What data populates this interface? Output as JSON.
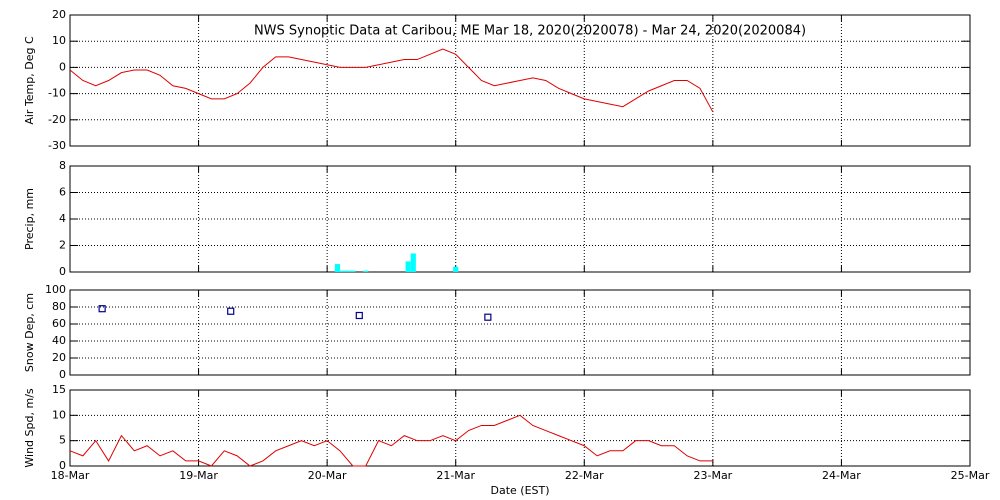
{
  "chart_data": [
    {
      "type": "line",
      "title": "NWS Synoptic Data at Caribou, ME   Mar 18, 2020(2020078) - Mar 24, 2020(2020084)",
      "ylabel": "Air Temp, Deg C",
      "color": "#e00000",
      "x": [
        0,
        0.1,
        0.2,
        0.3,
        0.4,
        0.5,
        0.6,
        0.7,
        0.8,
        0.9,
        1.0,
        1.1,
        1.2,
        1.3,
        1.4,
        1.5,
        1.6,
        1.7,
        1.8,
        1.9,
        2.0,
        2.1,
        2.2,
        2.3,
        2.4,
        2.5,
        2.6,
        2.7,
        2.8,
        2.9,
        3.0,
        3.1,
        3.2,
        3.3,
        3.4,
        3.5,
        3.6,
        3.7,
        3.8,
        3.9,
        4.0,
        4.1,
        4.2,
        4.3,
        4.4,
        4.5,
        4.6,
        4.7,
        4.8,
        4.9,
        5.0
      ],
      "values": [
        -1,
        -5,
        -7,
        -5,
        -2,
        -1,
        -1,
        -3,
        -7,
        -8,
        -10,
        -12,
        -12,
        -10,
        -6,
        0,
        4,
        4,
        3,
        2,
        1,
        0,
        0,
        0,
        1,
        2,
        3,
        3,
        5,
        7,
        5,
        0,
        -5,
        -7,
        -6,
        -5,
        -4,
        -5,
        -8,
        -10,
        -12,
        -13,
        -14,
        -15,
        -12,
        -9,
        -7,
        -5,
        -5,
        -8,
        -17
      ],
      "xlim": [
        0,
        7
      ],
      "xticks": [
        0,
        1,
        2,
        3,
        4,
        5,
        6,
        7
      ],
      "ylim": [
        -30,
        20
      ],
      "yticks": [
        -30,
        -20,
        -10,
        0,
        10,
        20
      ],
      "grid": true
    },
    {
      "type": "bar",
      "ylabel": "Precip, mm",
      "color": "#00ffff",
      "x": [
        2.08,
        2.12,
        2.16,
        2.2,
        2.3,
        2.63,
        2.67,
        3.0
      ],
      "values": [
        0.6,
        0.1,
        0.1,
        0.1,
        0.1,
        0.8,
        1.4,
        0.4
      ],
      "xlim": [
        0,
        7
      ],
      "xticks": [
        0,
        1,
        2,
        3,
        4,
        5,
        6,
        7
      ],
      "ylim": [
        0,
        8
      ],
      "yticks": [
        0,
        2,
        4,
        6,
        8
      ],
      "grid": true
    },
    {
      "type": "scatter",
      "ylabel": "Snow Dep, cm",
      "color": "#000090",
      "x": [
        0.25,
        1.25,
        2.25,
        3.25
      ],
      "values": [
        78,
        75,
        70,
        68
      ],
      "xlim": [
        0,
        7
      ],
      "xticks": [
        0,
        1,
        2,
        3,
        4,
        5,
        6,
        7
      ],
      "ylim": [
        0,
        100
      ],
      "yticks": [
        0,
        20,
        40,
        60,
        80,
        100
      ],
      "grid": true
    },
    {
      "type": "line",
      "ylabel": "Wind Spd, m/s",
      "xlabel": "Date (EST)",
      "color": "#e00000",
      "x": [
        0,
        0.1,
        0.2,
        0.3,
        0.4,
        0.5,
        0.6,
        0.7,
        0.8,
        0.9,
        1.0,
        1.1,
        1.2,
        1.3,
        1.4,
        1.5,
        1.6,
        1.7,
        1.8,
        1.9,
        2.0,
        2.1,
        2.2,
        2.3,
        2.4,
        2.5,
        2.6,
        2.7,
        2.8,
        2.9,
        3.0,
        3.1,
        3.2,
        3.3,
        3.4,
        3.5,
        3.6,
        3.7,
        3.8,
        3.9,
        4.0,
        4.1,
        4.2,
        4.3,
        4.4,
        4.5,
        4.6,
        4.7,
        4.8,
        4.9,
        5.0
      ],
      "values": [
        3,
        2,
        5,
        1,
        6,
        3,
        4,
        2,
        3,
        1,
        1,
        0,
        3,
        2,
        0,
        1,
        3,
        4,
        5,
        4,
        5,
        3,
        0,
        0,
        5,
        4,
        6,
        5,
        5,
        6,
        5,
        7,
        8,
        8,
        9,
        10,
        8,
        7,
        6,
        5,
        4,
        2,
        3,
        3,
        5,
        5,
        4,
        4,
        2,
        1,
        1
      ],
      "xlim": [
        0,
        7
      ],
      "xticks": [
        {
          "value": 0,
          "label": "18-Mar"
        },
        {
          "value": 1,
          "label": "19-Mar"
        },
        {
          "value": 2,
          "label": "20-Mar"
        },
        {
          "value": 3,
          "label": "21-Mar"
        },
        {
          "value": 4,
          "label": "22-Mar"
        },
        {
          "value": 5,
          "label": "23-Mar"
        },
        {
          "value": 6,
          "label": "24-Mar"
        },
        {
          "value": 7,
          "label": "25-Mar"
        }
      ],
      "ylim": [
        0,
        15
      ],
      "yticks": [
        0,
        5,
        10,
        15
      ],
      "grid": true
    }
  ]
}
